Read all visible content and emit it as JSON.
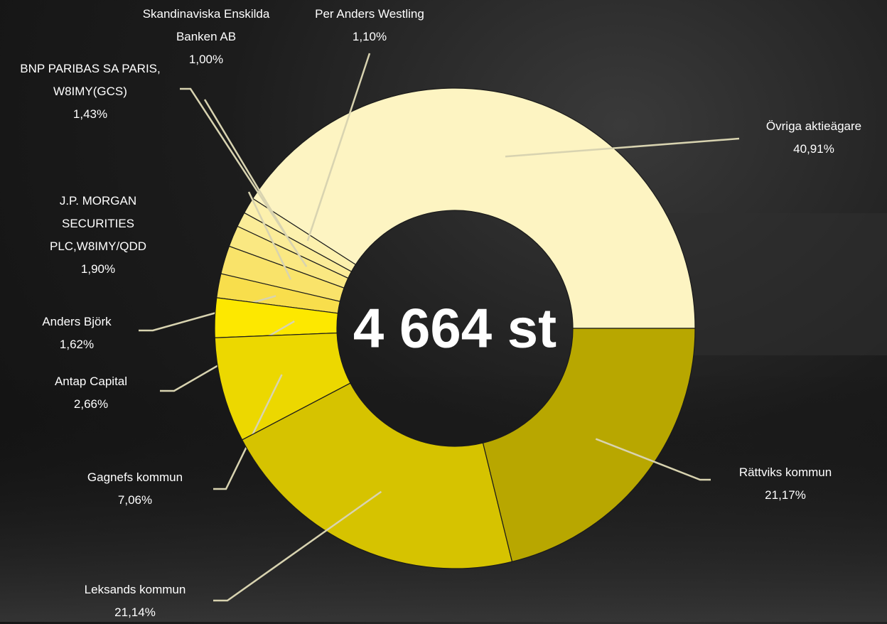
{
  "chart_data": {
    "type": "donut",
    "center_label": "4 664 st",
    "categories": [
      "Övriga aktieägare",
      "Per Anders Westling",
      "Skandinaviska Enskilda Banken AB",
      "BNP PARIBAS SA PARIS, W8IMY(GCS)",
      "J.P. MORGAN SECURITIES PLC,W8IMY/QDD",
      "Anders Björk",
      "Antap Capital",
      "Gagnefs kommun",
      "Leksands kommun",
      "Rättviks kommun"
    ],
    "values": [
      40.91,
      1.1,
      1.0,
      1.43,
      1.9,
      1.62,
      2.66,
      7.06,
      21.14,
      21.17
    ],
    "value_labels": [
      "40,91%",
      "1,10%",
      "1,00%",
      "1,43%",
      "1,90%",
      "1,62%",
      "2,66%",
      "7,06%",
      "21,14%",
      "21,17%"
    ],
    "colors": [
      "#fdf4c2",
      "#fcf0ad",
      "#fbec98",
      "#fae882",
      "#f9e36a",
      "#f8de4c",
      "#fde800",
      "#ecd800",
      "#d6c300",
      "#b8a700"
    ]
  }
}
